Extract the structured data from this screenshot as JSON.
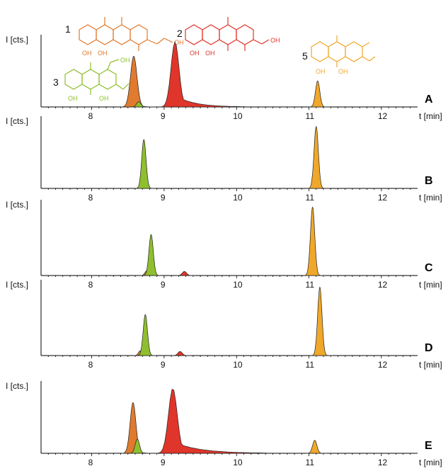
{
  "colors": {
    "compound1": "#e07a2e",
    "compound2": "#e0352a",
    "compound3": "#8fbf2e",
    "compound5": "#f0a82a",
    "axis": "#000000"
  },
  "chart_data": {
    "type": "area",
    "xlabel": "t [min]",
    "ylabel": "I [cts.]",
    "xlim": [
      7.3,
      12.5
    ],
    "x_ticks": [
      "8",
      "9",
      "10",
      "11",
      "12"
    ],
    "x_tick_values": [
      8,
      9,
      10,
      11,
      12
    ],
    "panels": [
      {
        "label": "A",
        "peaks": [
          {
            "compound": "1",
            "color_key": "compound1",
            "rt": 8.58,
            "height": 0.78,
            "width": 0.045,
            "tail": 0.05
          },
          {
            "compound": "3",
            "color_key": "compound3",
            "rt": 8.65,
            "height": 0.08,
            "width": 0.03,
            "tail": 0.01
          },
          {
            "compound": "2",
            "color_key": "compound2",
            "rt": 9.15,
            "height": 1.0,
            "width": 0.055,
            "tail": 0.25
          },
          {
            "compound": "5",
            "color_key": "compound5",
            "rt": 11.12,
            "height": 0.4,
            "width": 0.03,
            "tail": 0.02
          }
        ],
        "structures": [
          {
            "number": "1",
            "color_key": "compound1",
            "substituents": [
              "OH",
              "OH",
              "OH"
            ]
          },
          {
            "number": "2",
            "color_key": "compound2",
            "substituents": [
              "OH",
              "OH",
              "OH"
            ]
          },
          {
            "number": "3",
            "color_key": "compound3",
            "substituents": [
              "OH",
              "OH",
              "OH"
            ]
          },
          {
            "number": "5",
            "color_key": "compound5",
            "substituents": [
              "OH",
              "OH"
            ]
          }
        ]
      },
      {
        "label": "B",
        "peaks": [
          {
            "compound": "3",
            "color_key": "compound3",
            "rt": 8.72,
            "height": 0.75,
            "width": 0.03,
            "tail": 0.01
          },
          {
            "compound": "5",
            "color_key": "compound5",
            "rt": 11.1,
            "height": 0.95,
            "width": 0.03,
            "tail": 0.02
          }
        ]
      },
      {
        "label": "C",
        "peaks": [
          {
            "compound": "1",
            "color_key": "compound1",
            "rt": 8.76,
            "height": 0.07,
            "width": 0.025,
            "tail": 0.01
          },
          {
            "compound": "3",
            "color_key": "compound3",
            "rt": 8.82,
            "height": 0.6,
            "width": 0.03,
            "tail": 0.01
          },
          {
            "compound": "2",
            "color_key": "compound2",
            "rt": 9.28,
            "height": 0.06,
            "width": 0.03,
            "tail": 0.01
          },
          {
            "compound": "5",
            "color_key": "compound5",
            "rt": 11.05,
            "height": 1.0,
            "width": 0.03,
            "tail": 0.02
          }
        ]
      },
      {
        "label": "D",
        "peaks": [
          {
            "compound": "1",
            "color_key": "compound1",
            "rt": 8.67,
            "height": 0.07,
            "width": 0.025,
            "tail": 0.01
          },
          {
            "compound": "3",
            "color_key": "compound3",
            "rt": 8.74,
            "height": 0.6,
            "width": 0.03,
            "tail": 0.01
          },
          {
            "compound": "2",
            "color_key": "compound2",
            "rt": 9.22,
            "height": 0.06,
            "width": 0.03,
            "tail": 0.01
          },
          {
            "compound": "5",
            "color_key": "compound5",
            "rt": 11.15,
            "height": 1.0,
            "width": 0.03,
            "tail": 0.02
          }
        ]
      },
      {
        "label": "E",
        "peaks": [
          {
            "compound": "1",
            "color_key": "compound1",
            "rt": 8.57,
            "height": 0.78,
            "width": 0.04,
            "tail": 0.05
          },
          {
            "compound": "3",
            "color_key": "compound3",
            "rt": 8.63,
            "height": 0.22,
            "width": 0.03,
            "tail": 0.01
          },
          {
            "compound": "2",
            "color_key": "compound2",
            "rt": 9.12,
            "height": 1.0,
            "width": 0.06,
            "tail": 0.35
          },
          {
            "compound": "5",
            "color_key": "compound5",
            "rt": 11.08,
            "height": 0.2,
            "width": 0.03,
            "tail": 0.02
          }
        ]
      }
    ]
  }
}
